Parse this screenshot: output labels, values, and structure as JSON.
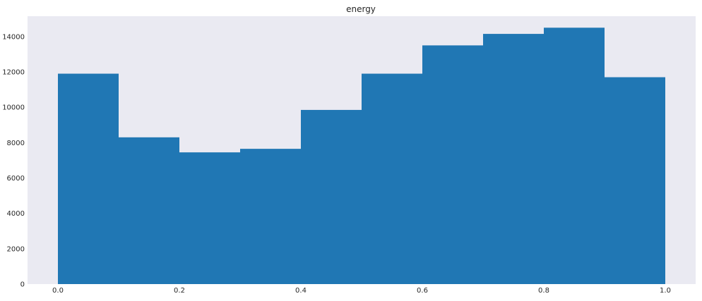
{
  "colors": {
    "plot_background": "#eaeaf2",
    "bar_fill": "#2077b4",
    "text": "#262626"
  },
  "chart_data": {
    "type": "bar",
    "title": "energy",
    "xlabel": "",
    "ylabel": "",
    "bins": [
      {
        "x0": 0.0,
        "x1": 0.1,
        "count": 11900
      },
      {
        "x0": 0.1,
        "x1": 0.2,
        "count": 8300
      },
      {
        "x0": 0.2,
        "x1": 0.3,
        "count": 7450
      },
      {
        "x0": 0.3,
        "x1": 0.4,
        "count": 7650
      },
      {
        "x0": 0.4,
        "x1": 0.5,
        "count": 9850
      },
      {
        "x0": 0.5,
        "x1": 0.6,
        "count": 11900
      },
      {
        "x0": 0.6,
        "x1": 0.7,
        "count": 13500
      },
      {
        "x0": 0.7,
        "x1": 0.8,
        "count": 14150
      },
      {
        "x0": 0.8,
        "x1": 0.9,
        "count": 14500
      },
      {
        "x0": 0.9,
        "x1": 1.0,
        "count": 11700
      }
    ],
    "xlim": [
      -0.05,
      1.05
    ],
    "ylim": [
      0,
      15150
    ],
    "xticks": [
      0.0,
      0.2,
      0.4,
      0.6,
      0.8,
      1.0
    ],
    "xtick_labels": [
      "0.0",
      "0.2",
      "0.4",
      "0.6",
      "0.8",
      "1.0"
    ],
    "yticks": [
      0,
      2000,
      4000,
      6000,
      8000,
      10000,
      12000,
      14000
    ],
    "ytick_labels": [
      "0",
      "2000",
      "4000",
      "6000",
      "8000",
      "10000",
      "12000",
      "14000"
    ],
    "grid": false,
    "legend": "none"
  }
}
